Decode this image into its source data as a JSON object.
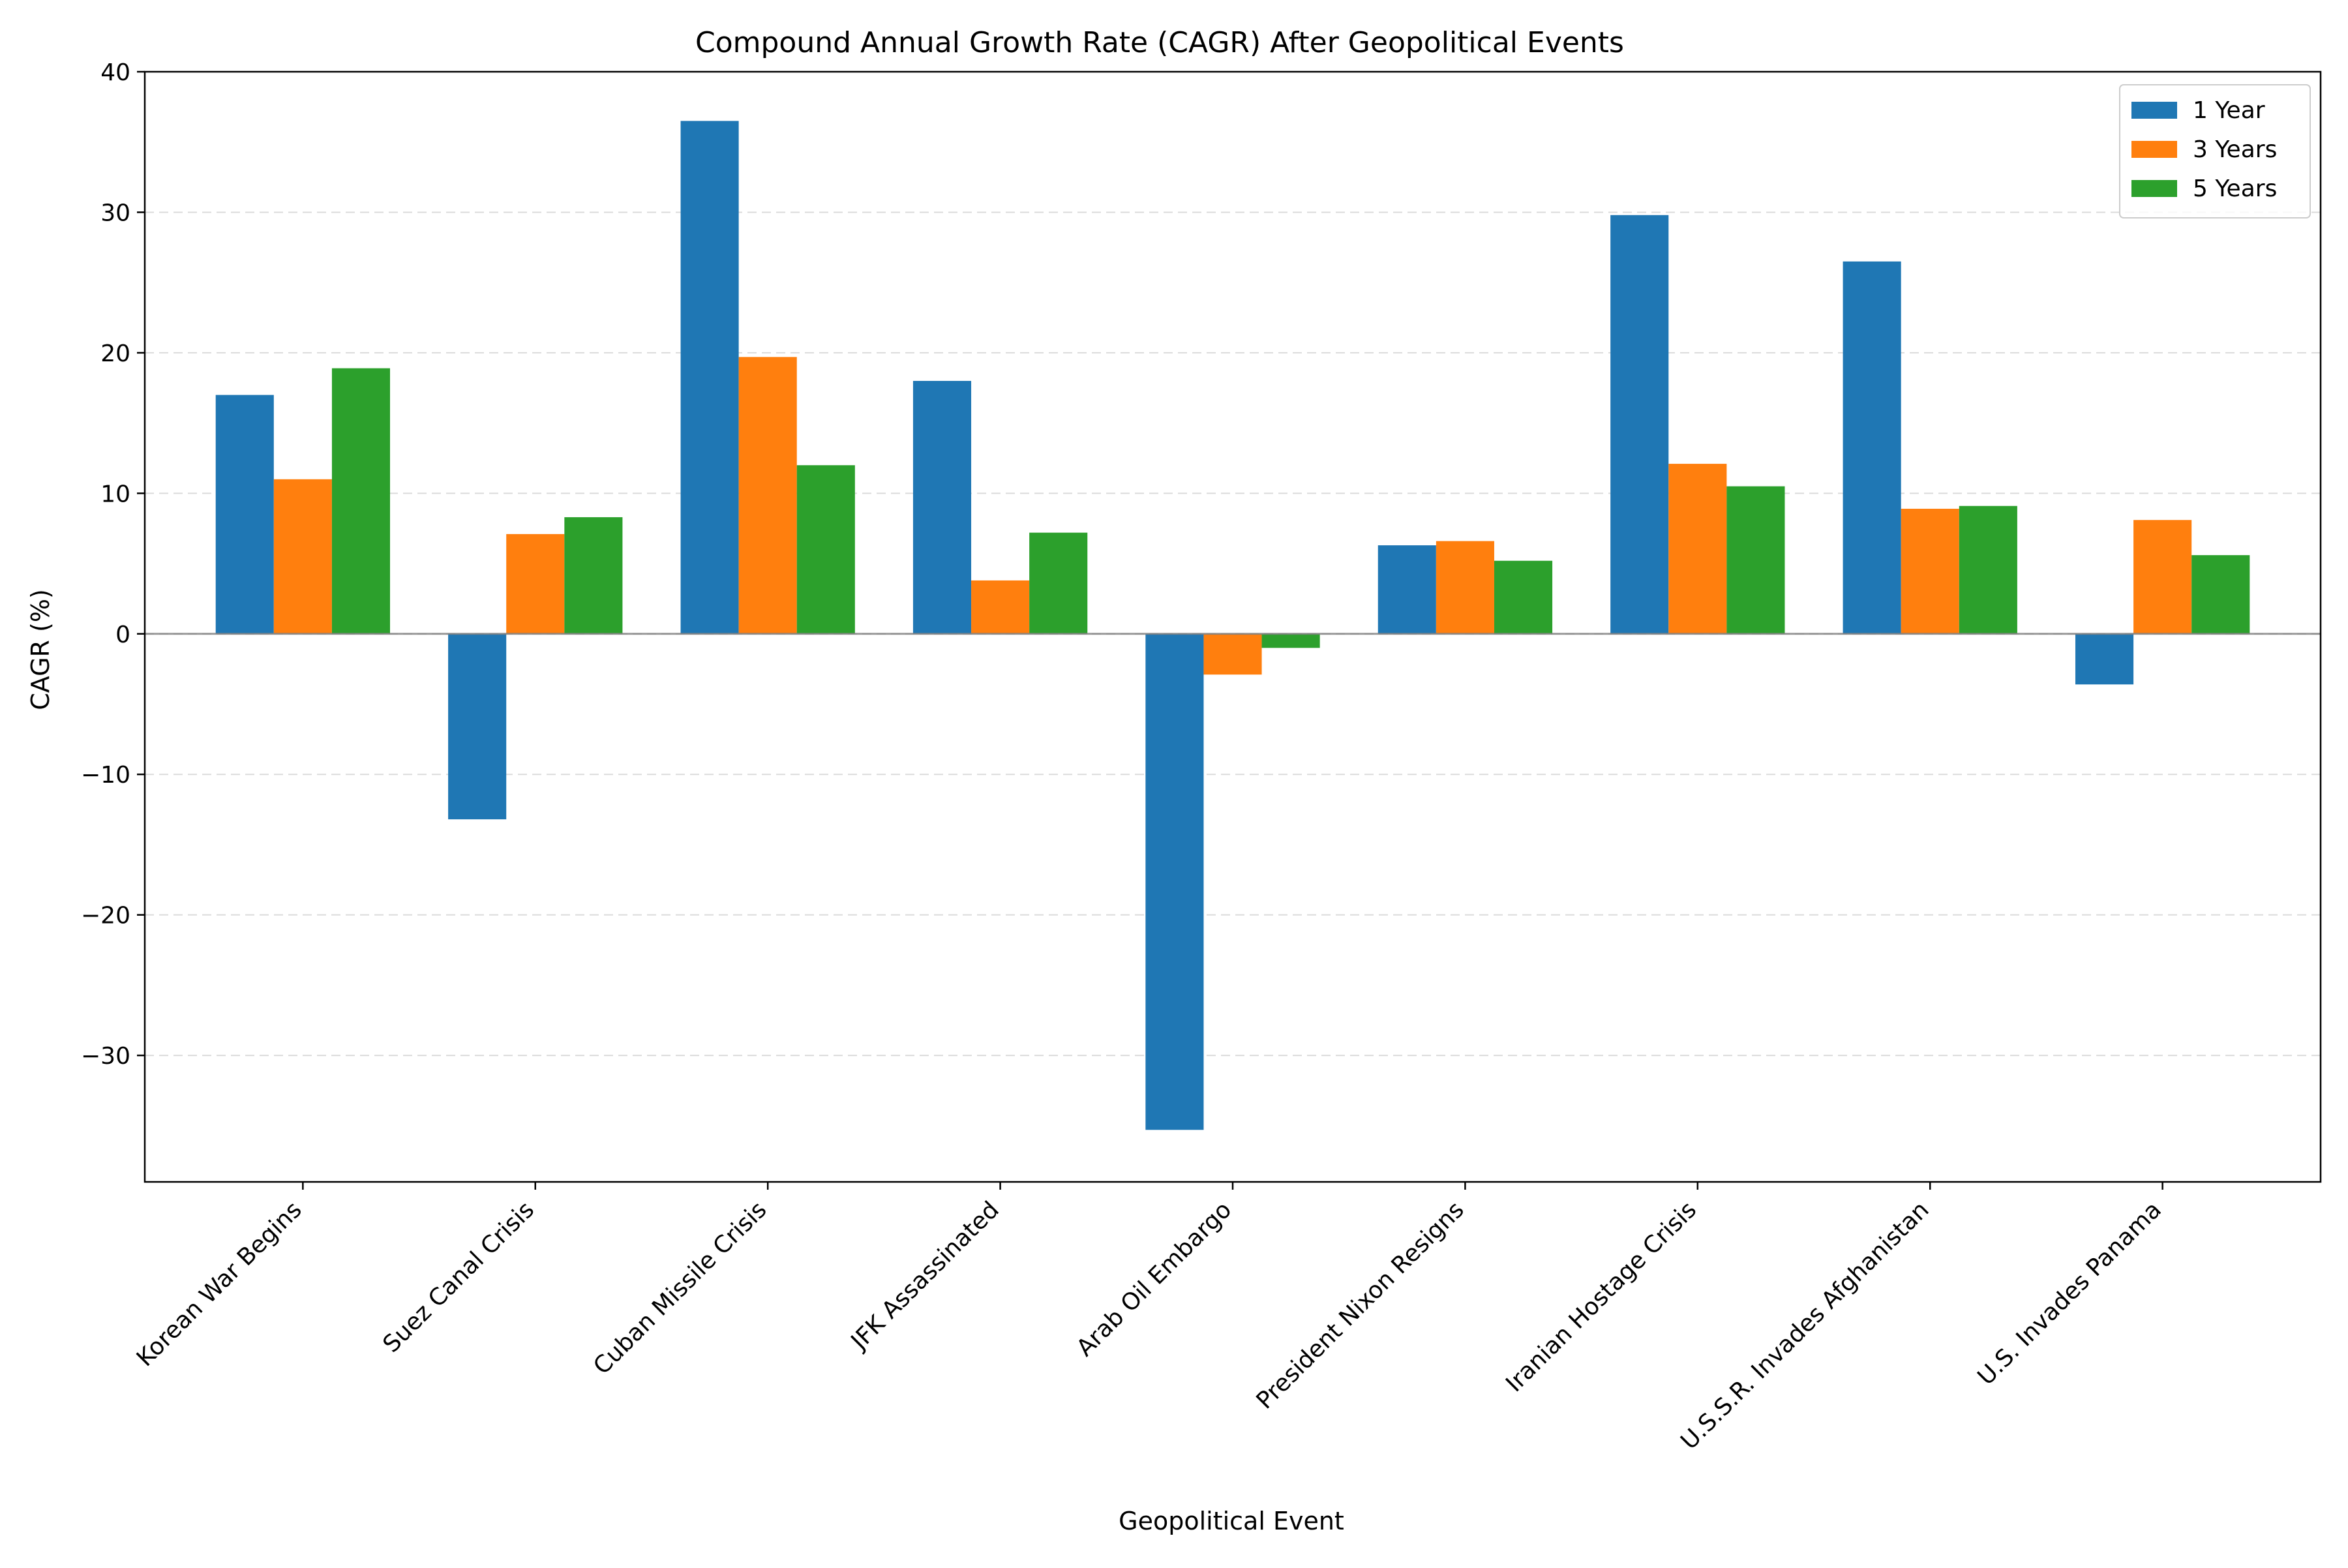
{
  "chart_data": {
    "type": "bar",
    "title": "Compound Annual Growth Rate (CAGR) After Geopolitical Events",
    "xlabel": "Geopolitical Event",
    "ylabel": "CAGR (%)",
    "categories": [
      "Korean War Begins",
      "Suez Canal Crisis",
      "Cuban Missile Crisis",
      "JFK Assassinated",
      "Arab Oil Embargo",
      "President Nixon Resigns",
      "Iranian Hostage Crisis",
      "U.S.S.R. Invades Afghanistan",
      "U.S. Invades Panama"
    ],
    "series": [
      {
        "name": "1 Year",
        "color": "#1f77b4",
        "values": [
          17.0,
          -13.2,
          36.5,
          18.0,
          -35.3,
          6.3,
          29.8,
          26.5,
          -3.6
        ]
      },
      {
        "name": "3 Years",
        "color": "#ff7f0e",
        "values": [
          11.0,
          7.1,
          19.7,
          3.8,
          -2.9,
          6.6,
          12.1,
          8.9,
          8.1
        ]
      },
      {
        "name": "5 Years",
        "color": "#2ca02c",
        "values": [
          18.9,
          8.3,
          12.0,
          7.2,
          -1.0,
          5.2,
          10.5,
          9.1,
          5.6
        ]
      }
    ],
    "yticks": [
      -30,
      -20,
      -10,
      0,
      10,
      20,
      30,
      40
    ],
    "ytick_labels": [
      "−30",
      "−20",
      "−10",
      "0",
      "10",
      "20",
      "30",
      "40"
    ],
    "ylim": [
      -39,
      40
    ],
    "grid": "y-dashed",
    "zero_line": true,
    "legend_position": "top-right"
  }
}
